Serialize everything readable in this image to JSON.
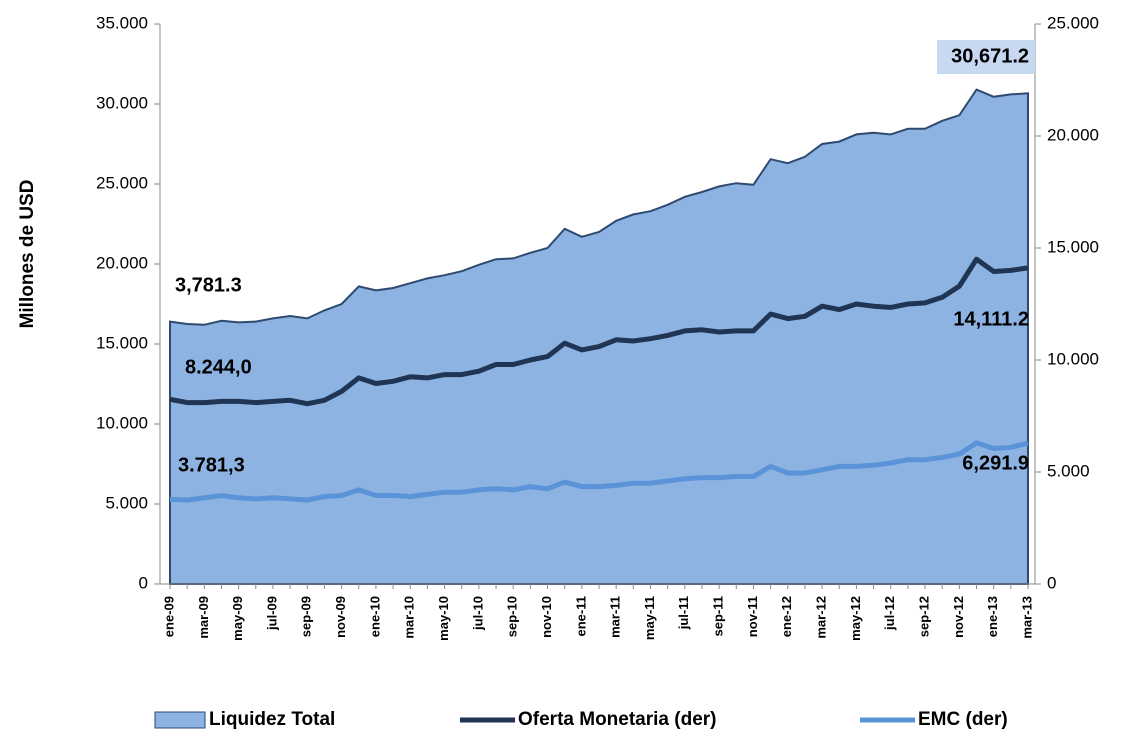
{
  "chart_data": {
    "type": "area_line",
    "y_label": "Millones de  USD",
    "categories": [
      "ene-09",
      null,
      "mar-09",
      null,
      "may-09",
      null,
      "jul-09",
      null,
      "sep-09",
      null,
      "nov-09",
      null,
      "ene-10",
      null,
      "mar-10",
      null,
      "may-10",
      null,
      "jul-10",
      null,
      "sep-10",
      null,
      "nov-10",
      null,
      "ene-11",
      null,
      "mar-11",
      null,
      "may-11",
      null,
      "jul-11",
      null,
      "sep-11",
      null,
      "nov-11",
      null,
      "ene-12",
      null,
      "mar-12",
      null,
      "may-12",
      null,
      "jul-12",
      null,
      "sep-12",
      null,
      "nov-12",
      null,
      "ene-13",
      null,
      "mar-13"
    ],
    "series": [
      {
        "name": "Liquidez Total",
        "kind": "area",
        "color": "#8db3e2",
        "line_color": "#2f4a6f",
        "values": [
          16400,
          16250,
          16200,
          16450,
          16350,
          16400,
          16600,
          16750,
          16600,
          17100,
          17500,
          18600,
          18350,
          18500,
          18800,
          19100,
          19300,
          19550,
          19950,
          20300,
          20350,
          20700,
          21000,
          22200,
          21700,
          22000,
          22700,
          23100,
          23300,
          23700,
          24200,
          24500,
          24850,
          25050,
          24950,
          26550,
          26300,
          26700,
          27500,
          27650,
          28100,
          28200,
          28100,
          28450,
          28450,
          28950,
          29300,
          30900,
          30450,
          30600,
          30671.2
        ]
      },
      {
        "name": "Oferta Monetaria (der)",
        "kind": "line",
        "axis": "y2",
        "color": "#1f3553",
        "values": [
          8244,
          8100,
          8100,
          8150,
          8150,
          8100,
          8150,
          8200,
          8050,
          8200,
          8600,
          9200,
          8950,
          9050,
          9250,
          9200,
          9350,
          9350,
          9500,
          9800,
          9800,
          10000,
          10150,
          10750,
          10450,
          10600,
          10900,
          10850,
          10950,
          11100,
          11300,
          11350,
          11250,
          11300,
          11300,
          12050,
          11850,
          11950,
          12400,
          12250,
          12500,
          12400,
          12350,
          12500,
          12550,
          12800,
          13300,
          14500,
          13950,
          14000,
          14111.2
        ]
      },
      {
        "name": "EMC (der)",
        "kind": "line",
        "axis": "y2",
        "color": "#5a93d8",
        "values": [
          3781.3,
          3750,
          3850,
          3950,
          3850,
          3800,
          3850,
          3800,
          3750,
          3900,
          3950,
          4200,
          3950,
          3950,
          3900,
          4000,
          4100,
          4100,
          4200,
          4250,
          4200,
          4350,
          4250,
          4550,
          4350,
          4350,
          4400,
          4500,
          4500,
          4600,
          4700,
          4750,
          4750,
          4800,
          4800,
          5250,
          4950,
          4950,
          5100,
          5250,
          5250,
          5300,
          5400,
          5550,
          5550,
          5650,
          5800,
          6300,
          6050,
          6100,
          6291.9
        ]
      }
    ],
    "annotations": [
      "3,781.3",
      "8.244,0",
      "3.781,3",
      "30,671.2",
      "14,111.2",
      "6,291.9"
    ],
    "ylim": [
      0,
      35000
    ],
    "yticks": [
      0,
      {
        "value": 5000,
        "label": "5.000"
      },
      {
        "value": 10000,
        "label": "10.000"
      },
      {
        "value": 15000,
        "label": "15.000"
      },
      {
        "value": 20000,
        "label": "20.000"
      },
      {
        "value": 25000,
        "label": "25.000"
      },
      {
        "value": 30000,
        "label": "30.000"
      },
      {
        "value": 35000,
        "label": "35.000"
      }
    ],
    "y2lim": [
      0,
      25000
    ],
    "y2ticks": [
      0,
      {
        "value": 5000,
        "label": "5.000"
      },
      {
        "value": 10000,
        "label": "10.000"
      },
      {
        "value": 15000,
        "label": "15.000"
      },
      {
        "value": 20000,
        "label": "20.000"
      },
      {
        "value": 25000,
        "label": "25.000"
      }
    ]
  }
}
